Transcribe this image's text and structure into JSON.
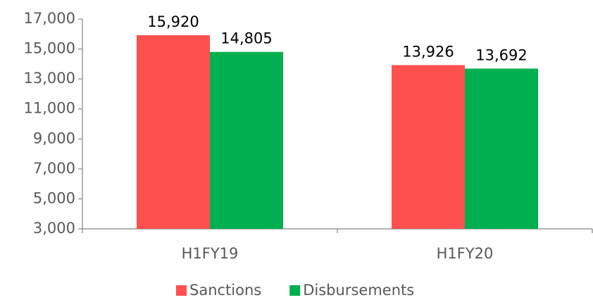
{
  "chart_data": {
    "type": "bar",
    "categories": [
      "H1FY19",
      "H1FY20"
    ],
    "series": [
      {
        "name": "Sanctions",
        "color": "#ff5050",
        "values": [
          15920,
          13926
        ],
        "value_labels": [
          "15,920",
          "13,926"
        ]
      },
      {
        "name": "Disbursements",
        "color": "#00b050",
        "values": [
          14805,
          13692
        ],
        "value_labels": [
          "14,805",
          "13,692"
        ]
      }
    ],
    "ylim": [
      3000,
      17000
    ],
    "yticks": [
      {
        "value": 3000,
        "label": "3,000"
      },
      {
        "value": 5000,
        "label": "5,000"
      },
      {
        "value": 7000,
        "label": "7,000"
      },
      {
        "value": 9000,
        "label": "9,000"
      },
      {
        "value": 11000,
        "label": "11,000"
      },
      {
        "value": 13000,
        "label": "13,000"
      },
      {
        "value": 15000,
        "label": "15,000"
      },
      {
        "value": 17000,
        "label": "17,000"
      }
    ],
    "legend": "bottom"
  }
}
